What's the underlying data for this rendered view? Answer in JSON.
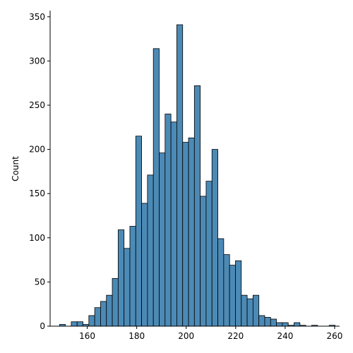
{
  "chart_data": {
    "type": "bar",
    "title": "",
    "xlabel": "",
    "ylabel": "Count",
    "xlim": [
      145,
      262
    ],
    "ylim": [
      0,
      357
    ],
    "xticks": [
      160,
      180,
      200,
      220,
      240,
      260
    ],
    "yticks": [
      0,
      50,
      100,
      150,
      200,
      250,
      300,
      350
    ],
    "grid": false,
    "bar_color": "#4c8ab6",
    "bin_width": 2.37,
    "bin_start": 148.8,
    "values": [
      2,
      0,
      5,
      5,
      2,
      12,
      21,
      28,
      35,
      54,
      109,
      88,
      113,
      215,
      139,
      171,
      314,
      196,
      240,
      231,
      341,
      208,
      213,
      272,
      147,
      164,
      200,
      99,
      81,
      69,
      74,
      35,
      31,
      35,
      12,
      10,
      8,
      4,
      4,
      1,
      4,
      1,
      0,
      1,
      0,
      0,
      1
    ]
  }
}
